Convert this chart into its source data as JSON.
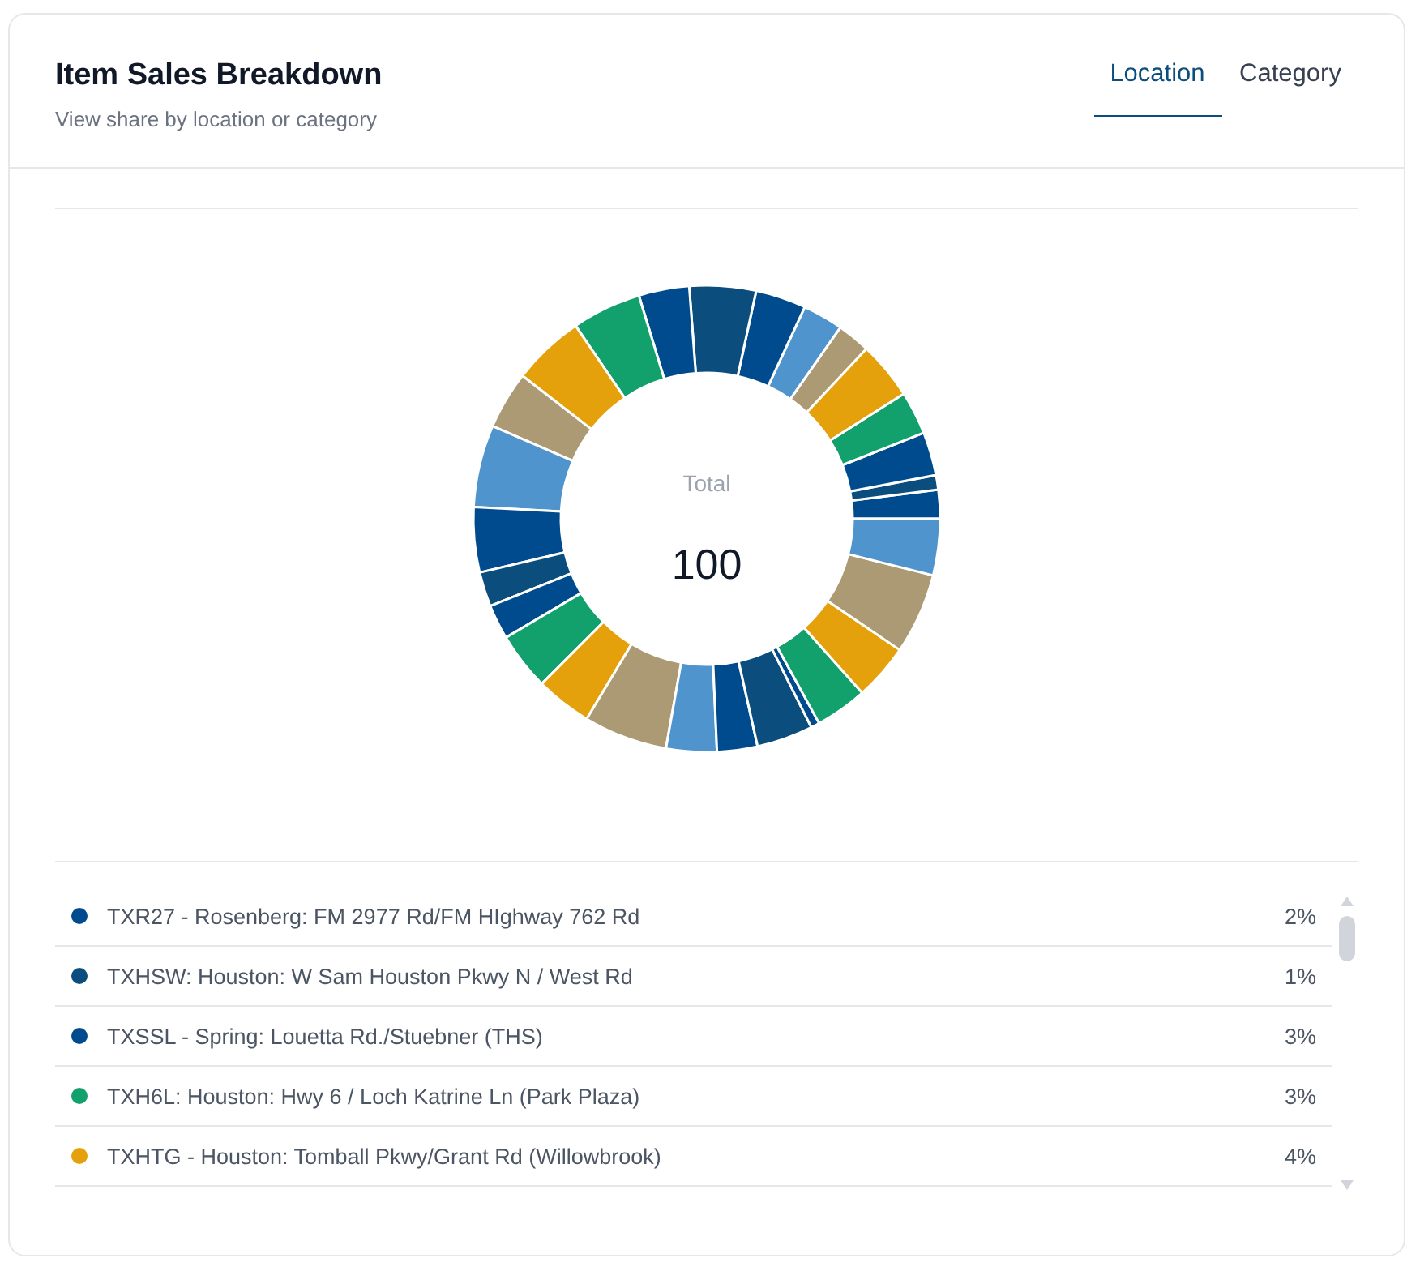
{
  "chart_data": {
    "type": "donut",
    "title": "Item Sales Breakdown",
    "subtitle": "View share by location or category",
    "annotations": [
      "Location",
      "Category",
      "Total",
      "100"
    ],
    "legend": "bottom",
    "categories": [
      "TXR27 - Rosenberg: FM 2977 Rd/FM HIghway 762 Rd",
      "TXHSW: Houston: W Sam Houston Pkwy N / West Rd",
      "TXSSL - Spring: Louetta Rd./Stuebner (THS)",
      "TXH6L: Houston: Hwy 6 / Loch Katrine Ln (Park Plaza)",
      "TXHTG - Houston: Tomball Pkwy/Grant Rd (Willowbrook)",
      null,
      null,
      null,
      null,
      null,
      null,
      null,
      null,
      null,
      null,
      null,
      null,
      null,
      null,
      null,
      null,
      null,
      null,
      null,
      null,
      null,
      null,
      null
    ],
    "values": [
      2,
      1,
      3,
      3,
      4,
      2.3,
      2.8,
      3.5,
      4.6,
      3.5,
      4.8,
      5,
      4,
      5.7,
      4.5,
      2.4,
      2.4,
      4,
      3.9,
      5.8,
      3.5,
      2.8,
      3.9,
      0.6,
      3.6,
      3.9,
      5.6,
      3.9
    ],
    "value_labels": [
      "2%",
      "1%",
      "3%",
      "3%",
      "4%",
      null,
      null,
      null,
      null,
      null,
      null,
      null,
      null,
      null,
      null,
      null,
      null,
      null,
      null,
      null,
      null,
      null,
      null,
      null,
      null,
      null,
      null,
      null
    ],
    "colors": [
      "#004b8d",
      "#0b4d7c",
      "#004b8d",
      "#12a06c",
      "#e4a10b",
      "#ab9a74",
      "#4f94cd",
      "#004b8d",
      "#0b4d7c",
      "#004b8d",
      "#12a06c",
      "#e4a10b",
      "#ab9a74",
      "#4f94cd",
      "#004b8d",
      "#0b4d7c",
      "#004b8d",
      "#12a06c",
      "#e4a10b",
      "#ab9a74",
      "#4f94cd",
      "#004b8d",
      "#0b4d7c",
      "#004b8d",
      "#12a06c",
      "#e4a10b",
      "#ab9a74",
      "#4f94cd"
    ]
  }
}
